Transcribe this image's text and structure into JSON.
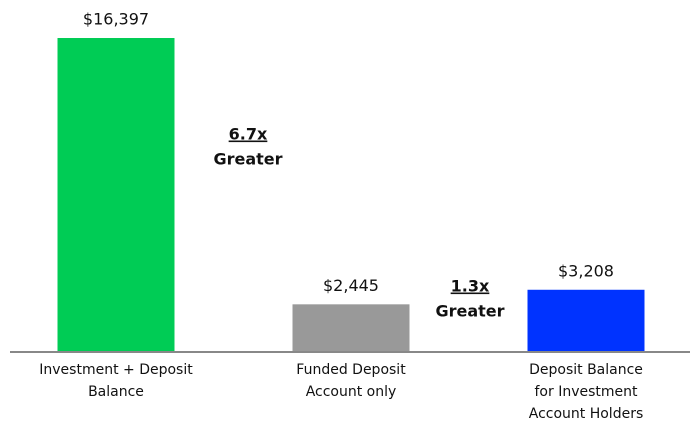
{
  "chart_data": {
    "type": "bar",
    "categories": [
      [
        "Investment + Deposit",
        "Balance"
      ],
      [
        "Funded Deposit",
        "Account only"
      ],
      [
        "Deposit Balance",
        "for Investment",
        "Account Holders"
      ]
    ],
    "values": [
      16397,
      2445,
      3208
    ],
    "value_labels": [
      "$16,397",
      "$2,445",
      "$3,208"
    ],
    "colors": [
      "#00cc55",
      "#999999",
      "#0033ff"
    ],
    "ylim": [
      0,
      17000
    ],
    "annotations": [
      [
        "6.7x",
        "Greater"
      ],
      [
        "1.3x",
        "Greater"
      ]
    ]
  }
}
